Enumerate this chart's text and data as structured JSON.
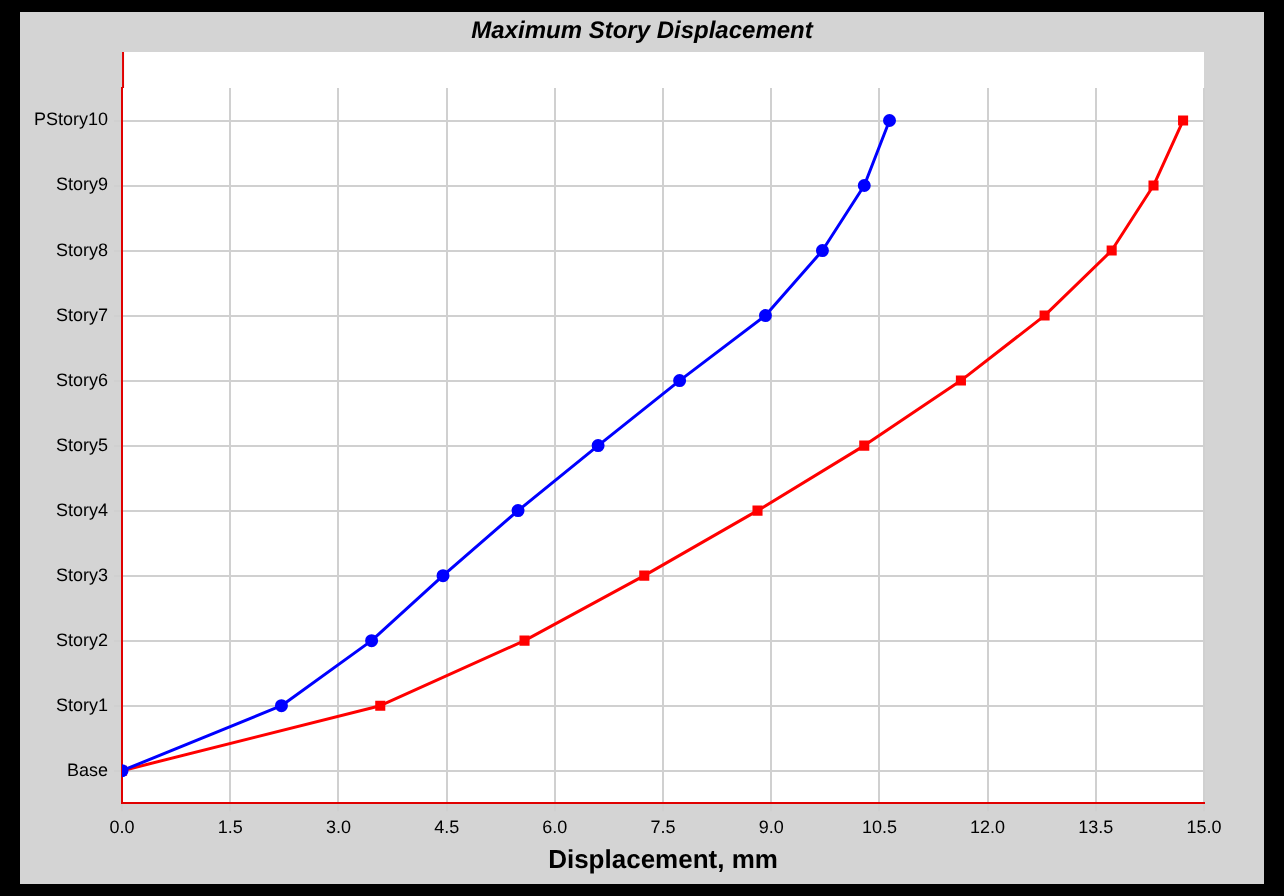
{
  "chart_data": {
    "type": "line",
    "title": "Maximum Story Displacement",
    "xlabel": "Displacement, mm",
    "orientation": "horizontal",
    "categories": [
      "PStory10",
      "Story9",
      "Story8",
      "Story7",
      "Story6",
      "Story5",
      "Story4",
      "Story3",
      "Story2",
      "Story1",
      "Base"
    ],
    "series": [
      {
        "color": "#0000ff",
        "marker": "circle",
        "values": [
          10.64,
          10.29,
          9.71,
          8.92,
          7.73,
          6.6,
          5.49,
          4.45,
          3.46,
          2.21,
          0
        ]
      },
      {
        "color": "#ff0000",
        "marker": "square",
        "values": [
          14.71,
          14.3,
          13.72,
          12.79,
          11.63,
          10.29,
          8.81,
          7.24,
          5.58,
          3.58,
          0
        ]
      }
    ],
    "xlim": [
      0,
      15
    ],
    "xticks": [
      {
        "value": 0,
        "label": "0.0"
      },
      {
        "value": 1.5,
        "label": "1.5"
      },
      {
        "value": 3,
        "label": "3.0"
      },
      {
        "value": 4.5,
        "label": "4.5"
      },
      {
        "value": 6,
        "label": "6.0"
      },
      {
        "value": 7.5,
        "label": "7.5"
      },
      {
        "value": 9,
        "label": "9.0"
      },
      {
        "value": 10.5,
        "label": "10.5"
      },
      {
        "value": 12,
        "label": "12.0"
      },
      {
        "value": 13.5,
        "label": "13.5"
      },
      {
        "value": 15,
        "label": "15.0"
      }
    ],
    "grid": true,
    "legend": false,
    "line_style": "solid"
  }
}
